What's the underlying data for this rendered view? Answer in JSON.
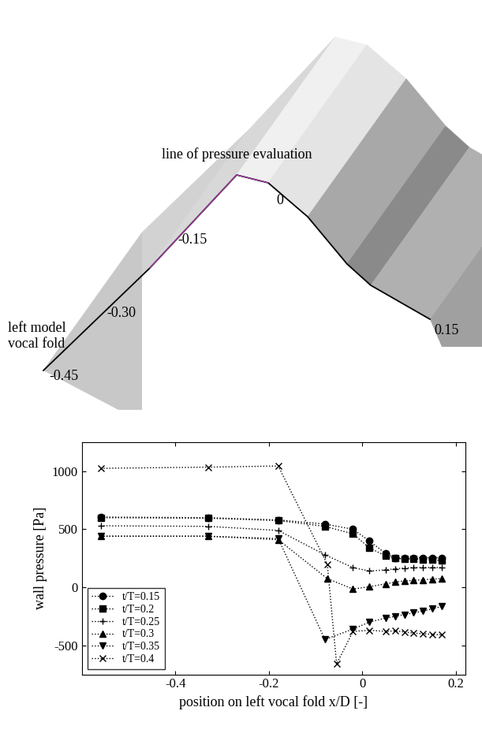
{
  "chart_data": {
    "type": "line",
    "xlabel": "position on left vocal fold x/D [-]",
    "ylabel": "wall pressure [Pa]",
    "xlim": [
      -0.6,
      0.22
    ],
    "ylim": [
      -750,
      1250
    ],
    "xticks": [
      -0.4,
      -0.2,
      0,
      0.2
    ],
    "yticks": [
      -500,
      0,
      500,
      1000
    ],
    "legend": "lower left",
    "grid": false,
    "series": [
      {
        "name": "t/T=0.15",
        "color": "#000000",
        "marker": "circle",
        "line_style": "dotted",
        "x": [
          -0.56,
          -0.33,
          -0.18,
          -0.08,
          -0.02,
          0.015,
          0.05,
          0.07,
          0.09,
          0.11,
          0.13,
          0.15,
          0.17
        ],
        "values": [
          605,
          600,
          580,
          545,
          500,
          400,
          290,
          255,
          255,
          255,
          255,
          255,
          255
        ]
      },
      {
        "name": "t/T=0.2",
        "color": "#000000",
        "marker": "square",
        "line_style": "dotted",
        "x": [
          -0.56,
          -0.33,
          -0.18,
          -0.08,
          -0.02,
          0.015,
          0.05,
          0.07,
          0.09,
          0.11,
          0.13,
          0.15,
          0.17
        ],
        "values": [
          600,
          595,
          575,
          525,
          460,
          340,
          270,
          250,
          245,
          245,
          240,
          235,
          230
        ]
      },
      {
        "name": "t/T=0.25",
        "color": "#000000",
        "marker": "plus",
        "line_style": "dotted",
        "x": [
          -0.56,
          -0.33,
          -0.18,
          -0.08,
          -0.02,
          0.015,
          0.05,
          0.07,
          0.09,
          0.11,
          0.13,
          0.15,
          0.17
        ],
        "values": [
          530,
          525,
          490,
          280,
          170,
          140,
          150,
          160,
          165,
          170,
          170,
          170,
          170
        ]
      },
      {
        "name": "t/T=0.3",
        "color": "#000000",
        "marker": "triangle_up",
        "line_style": "dotted",
        "x": [
          -0.56,
          -0.33,
          -0.18,
          -0.075,
          -0.02,
          0.015,
          0.05,
          0.07,
          0.09,
          0.11,
          0.13,
          0.15,
          0.17
        ],
        "values": [
          440,
          440,
          410,
          75,
          -15,
          5,
          30,
          45,
          55,
          60,
          65,
          70,
          75
        ]
      },
      {
        "name": "t/T=0.35",
        "color": "#000000",
        "marker": "triangle_down",
        "line_style": "dotted",
        "x": [
          -0.56,
          -0.33,
          -0.18,
          -0.08,
          -0.02,
          0.015,
          0.05,
          0.07,
          0.09,
          0.11,
          0.13,
          0.15,
          0.17
        ],
        "values": [
          440,
          440,
          420,
          -450,
          -360,
          -300,
          -265,
          -250,
          -235,
          -220,
          -205,
          -185,
          -165
        ]
      },
      {
        "name": "t/T=0.4",
        "color": "#000000",
        "marker": "x",
        "line_style": "dotted",
        "x": [
          -0.56,
          -0.33,
          -0.18,
          -0.075,
          -0.055,
          -0.02,
          0.015,
          0.05,
          0.07,
          0.09,
          0.11,
          0.13,
          0.15,
          0.17
        ],
        "values": [
          1025,
          1035,
          1045,
          200,
          -660,
          -380,
          -370,
          -380,
          -375,
          -385,
          -395,
          -400,
          -405,
          -410
        ]
      }
    ]
  },
  "diagram": {
    "line_label": "line of pressure evaluation",
    "model_label": "left model\nvocal fold",
    "position_labels": [
      {
        "value": -0.45,
        "label": "-0.45"
      },
      {
        "value": -0.3,
        "label": "-0.30"
      },
      {
        "value": -0.15,
        "label": "-0.15"
      },
      {
        "value": 0,
        "label": "0"
      },
      {
        "value": 0.15,
        "label": "0.15"
      }
    ]
  }
}
